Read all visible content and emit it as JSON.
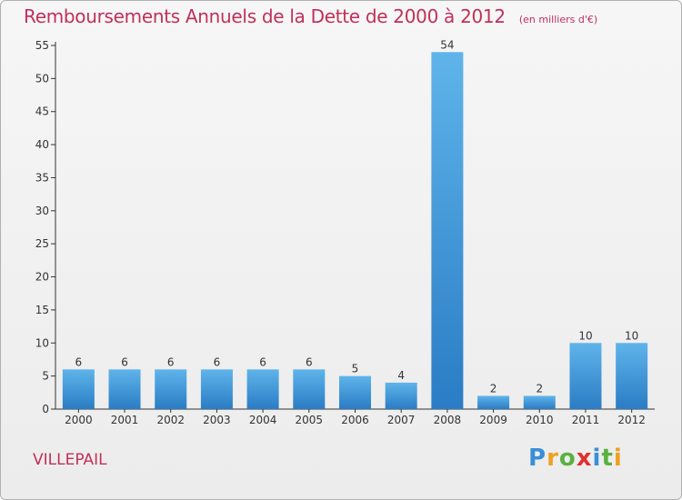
{
  "chart_data": {
    "type": "bar",
    "title": "Remboursements Annuels de la Dette de 2000 à 2012",
    "unit": "(en milliers d'€)",
    "categories": [
      "2000",
      "2001",
      "2002",
      "2003",
      "2004",
      "2005",
      "2006",
      "2007",
      "2008",
      "2009",
      "2010",
      "2011",
      "2012"
    ],
    "values": [
      6,
      6,
      6,
      6,
      6,
      6,
      5,
      4,
      54,
      2,
      2,
      10,
      10
    ],
    "yticks": [
      0,
      5,
      10,
      15,
      20,
      25,
      30,
      35,
      40,
      45,
      50,
      55
    ],
    "ylim": [
      0,
      55
    ],
    "grid": false,
    "xlabel": "",
    "ylabel": ""
  },
  "commune": "VILLEPAIL",
  "logo": {
    "letters": [
      "P",
      "r",
      "o",
      "x",
      "i",
      "t",
      "i"
    ],
    "colors": [
      "#3a8fd6",
      "#f0a020",
      "#5cb040",
      "#e03030",
      "#3a8fd6",
      "#5cb040",
      "#f0a020"
    ]
  },
  "colors": {
    "bar_top": "#5fb4ea",
    "bar_bottom": "#2a7cc4",
    "text": "#c0305a",
    "axis": "#333333"
  }
}
